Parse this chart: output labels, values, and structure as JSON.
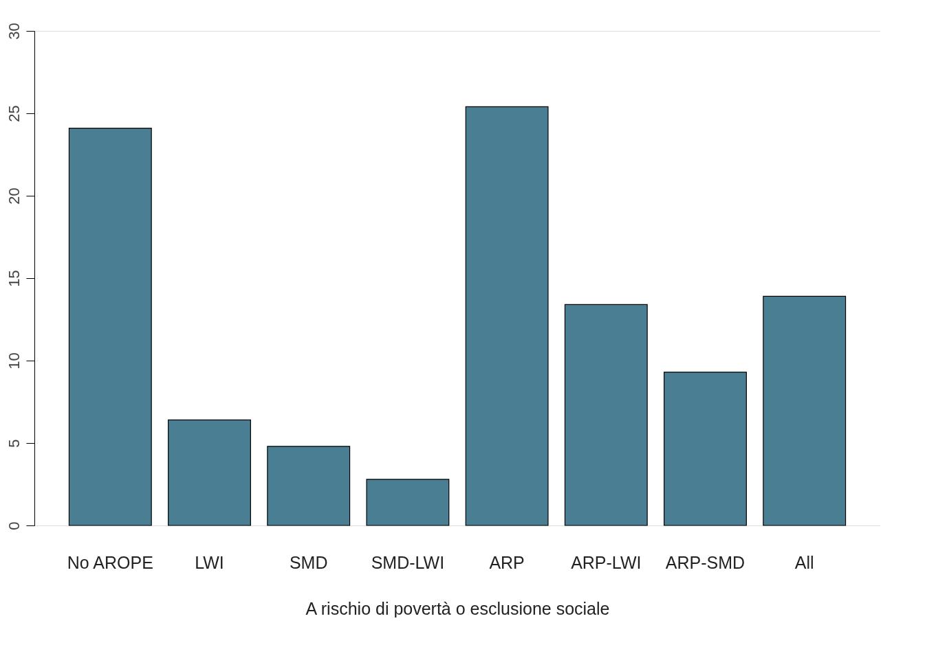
{
  "chart_data": {
    "type": "bar",
    "xlabel": "A rischio di povertà o esclusione sociale",
    "categories": [
      "No AROPE",
      "LWI",
      "SMD",
      "SMD-LWI",
      "ARP",
      "ARP-LWI",
      "ARP-SMD",
      "All"
    ],
    "values": [
      24.1,
      6.4,
      4.8,
      2.8,
      25.4,
      13.4,
      9.3,
      13.9
    ],
    "color": "#4a7f93",
    "ylim": [
      0,
      30
    ],
    "yticks": [
      0,
      5,
      10,
      15,
      20,
      25,
      30
    ],
    "grid": false
  }
}
